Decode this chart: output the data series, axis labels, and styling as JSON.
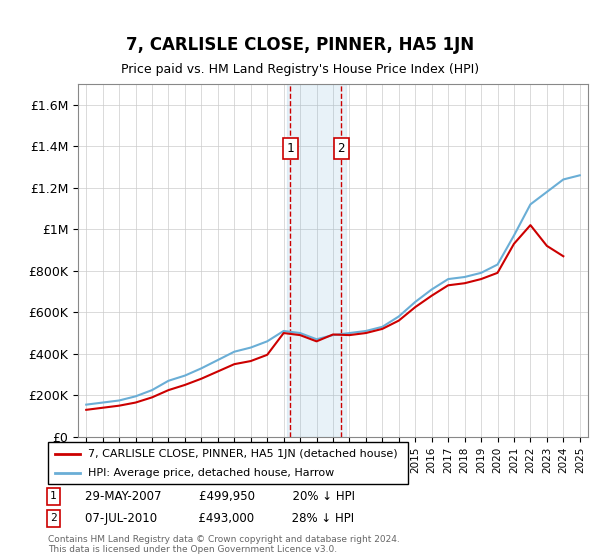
{
  "title": "7, CARLISLE CLOSE, PINNER, HA5 1JN",
  "subtitle": "Price paid vs. HM Land Registry's House Price Index (HPI)",
  "ylabel_ticks": [
    "£0",
    "£200K",
    "£400K",
    "£600K",
    "£800K",
    "£1M",
    "£1.2M",
    "£1.4M",
    "£1.6M"
  ],
  "ytick_values": [
    0,
    200000,
    400000,
    600000,
    800000,
    1000000,
    1200000,
    1400000,
    1600000
  ],
  "ylim": [
    0,
    1700000
  ],
  "xlim_start": 1994.5,
  "xlim_end": 2025.5,
  "hpi_color": "#6aaed6",
  "price_color": "#cc0000",
  "marker1_x": 2007.4,
  "marker2_x": 2010.5,
  "marker1_label": "1",
  "marker2_label": "2",
  "annotation1": "29-MAY-2007    £499,950    20% ↓ HPI",
  "annotation2": "07-JUL-2010    £493,000    28% ↓ HPI",
  "legend_line1": "7, CARLISLE CLOSE, PINNER, HA5 1JN (detached house)",
  "legend_line2": "HPI: Average price, detached house, Harrow",
  "footer": "Contains HM Land Registry data © Crown copyright and database right 2024.\nThis data is licensed under the Open Government Licence v3.0.",
  "hpi_years": [
    1995,
    1996,
    1997,
    1998,
    1999,
    2000,
    2001,
    2002,
    2003,
    2004,
    2005,
    2006,
    2007,
    2008,
    2009,
    2010,
    2011,
    2012,
    2013,
    2014,
    2015,
    2016,
    2017,
    2018,
    2019,
    2020,
    2021,
    2022,
    2023,
    2024,
    2025
  ],
  "hpi_values": [
    155000,
    165000,
    175000,
    195000,
    225000,
    270000,
    295000,
    330000,
    370000,
    410000,
    430000,
    460000,
    510000,
    500000,
    470000,
    490000,
    500000,
    510000,
    530000,
    580000,
    650000,
    710000,
    760000,
    770000,
    790000,
    830000,
    970000,
    1120000,
    1180000,
    1240000,
    1260000
  ],
  "price_years": [
    1995,
    1996,
    1997,
    1998,
    1999,
    2000,
    2001,
    2002,
    2003,
    2004,
    2005,
    2006,
    2007,
    2008,
    2009,
    2010,
    2011,
    2012,
    2013,
    2014,
    2015,
    2016,
    2017,
    2018,
    2019,
    2020,
    2021,
    2022,
    2023,
    2024
  ],
  "price_values": [
    130000,
    140000,
    150000,
    165000,
    190000,
    225000,
    250000,
    280000,
    315000,
    350000,
    365000,
    395000,
    499950,
    490000,
    460000,
    493000,
    490000,
    500000,
    520000,
    560000,
    625000,
    680000,
    730000,
    740000,
    760000,
    790000,
    930000,
    1020000,
    920000,
    870000
  ],
  "shade_x1": 2007.2,
  "shade_x2": 2010.8
}
